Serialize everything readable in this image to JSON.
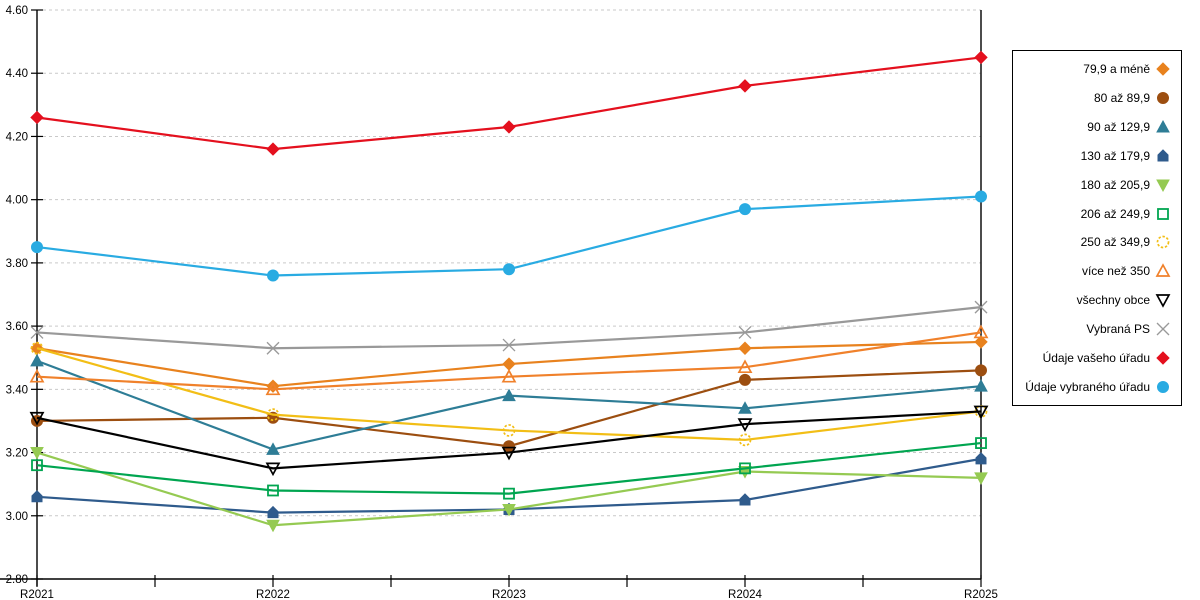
{
  "chart_data": {
    "type": "line",
    "title": "",
    "categories": [
      "R2021",
      "R2022",
      "R2023",
      "R2024",
      "R2025"
    ],
    "series": [
      {
        "name": "79,9 a méně",
        "marker": "diamond",
        "filled": true,
        "color": "#E8821E",
        "values": [
          3.53,
          3.41,
          3.48,
          3.53,
          3.55
        ]
      },
      {
        "name": "80 až 89,9",
        "marker": "circle",
        "filled": true,
        "color": "#9C4E10",
        "values": [
          3.3,
          3.31,
          3.22,
          3.43,
          3.46
        ]
      },
      {
        "name": "90 až 129,9",
        "marker": "triangle-up",
        "filled": true,
        "color": "#2E7D96",
        "values": [
          3.49,
          3.21,
          3.38,
          3.34,
          3.41
        ]
      },
      {
        "name": "130 až 179,9",
        "marker": "pentagon",
        "filled": true,
        "color": "#2F5B8C",
        "values": [
          3.06,
          3.01,
          3.02,
          3.05,
          3.18
        ]
      },
      {
        "name": "180 až 205,9",
        "marker": "triangle-down",
        "filled": true,
        "color": "#95CA52",
        "values": [
          3.2,
          2.97,
          3.02,
          3.14,
          3.12
        ]
      },
      {
        "name": "206 až 249,9",
        "marker": "square",
        "filled": false,
        "color": "#00A550",
        "values": [
          3.16,
          3.08,
          3.07,
          3.15,
          3.23
        ]
      },
      {
        "name": "250 až 349,9",
        "marker": "circle-dashed",
        "filled": false,
        "color": "#F2BE16",
        "values": [
          3.53,
          3.32,
          3.27,
          3.24,
          3.33
        ]
      },
      {
        "name": "více než 350",
        "marker": "triangle-up",
        "filled": false,
        "color": "#F0812B",
        "values": [
          3.44,
          3.4,
          3.44,
          3.47,
          3.58
        ]
      },
      {
        "name": "všechny obce",
        "marker": "triangle-down",
        "filled": false,
        "color": "#000000",
        "values": [
          3.31,
          3.15,
          3.2,
          3.29,
          3.33
        ]
      },
      {
        "name": "Vybraná PS",
        "marker": "x-cross",
        "filled": false,
        "color": "#999999",
        "values": [
          3.58,
          3.53,
          3.54,
          3.58,
          3.66
        ]
      },
      {
        "name": "Údaje vašeho úřadu",
        "marker": "diamond",
        "filled": true,
        "color": "#E4101E",
        "values": [
          4.26,
          4.16,
          4.23,
          4.36,
          4.45
        ]
      },
      {
        "name": "Údaje vybraného úřadu",
        "marker": "circle",
        "filled": true,
        "color": "#29ABE2",
        "values": [
          3.85,
          3.76,
          3.78,
          3.97,
          4.01
        ]
      }
    ],
    "y_axis": {
      "min": 2.8,
      "max": 4.6,
      "step": 0.2,
      "tick_labels": [
        "2.80",
        "3.00",
        "3.20",
        "3.40",
        "3.60",
        "3.80",
        "4.00",
        "4.20",
        "4.40",
        "4.60"
      ]
    },
    "x_axis": {
      "tick_labels": [
        "R2021",
        "R2022",
        "R2023",
        "R2024",
        "R2025"
      ],
      "minor_ticks_between_labels": 1
    },
    "grid": "horizontal-dashed",
    "legend_position": "right"
  },
  "colors": {
    "background": "#FFFFFF",
    "gridline": "#C9C9C9",
    "axis": "#000000",
    "legend_border": "#000000",
    "tick_label": "#000000"
  }
}
